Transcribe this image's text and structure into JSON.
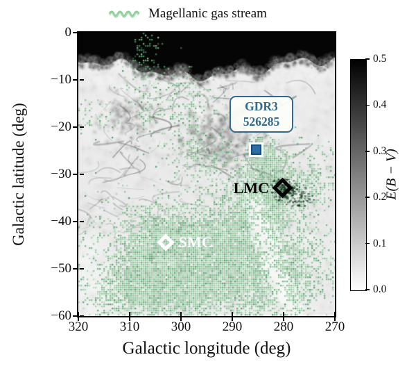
{
  "legend": {
    "label": "Magellanic gas stream",
    "marker_color": "#8ccf97"
  },
  "figure": {
    "annotation": {
      "line1": "GDR3",
      "line2": "526285",
      "color": "#2e6b8f"
    },
    "accent_colors": {
      "stream_green": "#58aa6c",
      "marker_blue_fill": "#2c6fa6",
      "marker_blue_edge": "#1a4a73"
    }
  },
  "chart_data": {
    "type": "heatmap",
    "title": "",
    "xlabel": "Galactic longitude (deg)",
    "ylabel": "Galactic latitude (deg)",
    "xlim": [
      320,
      270
    ],
    "ylim": [
      -60,
      0
    ],
    "x_ticks": [
      320,
      310,
      300,
      290,
      280,
      270
    ],
    "y_ticks": [
      0,
      -10,
      -20,
      -30,
      -40,
      -50,
      -60
    ],
    "grid": false,
    "colorbar": {
      "label": "E(B − V)",
      "range": [
        0.0,
        0.5
      ],
      "ticks": [
        0.0,
        0.1,
        0.2,
        0.3,
        0.4,
        0.5
      ],
      "colormap": "Greys (white=0.0, black=0.5)",
      "orientation": "vertical-right"
    },
    "legend": [
      {
        "label": "Magellanic gas stream",
        "color": "#8ccf97",
        "position": "above top edge"
      }
    ],
    "background_layers": [
      {
        "name": "dust-extinction-map",
        "description": "grayscale E(B-V) dust map: saturated black band along b=0 to -5, mottled gray clouds with dark filaments between b=-5 and -30, light gray below"
      },
      {
        "name": "magellanic-gas-stream",
        "description": "green pixelated overlay, densest from (l=310,b=-55) through SMC (l=303,b=-44) up to LMC (l=280,b=-33); sparse speckles above b=-25"
      }
    ],
    "points": [
      {
        "name": "GDR3 526285",
        "lon": 285.4,
        "lat": -24.8,
        "marker": {
          "shape": "square",
          "size": 15,
          "fill": "#2c6fa6",
          "edge": "#1a4a73",
          "edge_width": 2,
          "halo": "#ffffff"
        },
        "label": null
      },
      {
        "name": "LMC",
        "lon": 280.2,
        "lat": -32.9,
        "marker": {
          "shape": "diamond",
          "size": 21,
          "fill": "none",
          "edge": "#000000",
          "edge_width": 5
        },
        "label": {
          "text": "LMC",
          "color": "#000000",
          "side": "left",
          "font_size": 22
        }
      },
      {
        "name": "SMC",
        "lon": 303.0,
        "lat": -44.4,
        "marker": {
          "shape": "diamond",
          "size": 18,
          "fill": "none",
          "edge": "#ffffff",
          "edge_width": 5
        },
        "label": {
          "text": "SMC",
          "color": "#ffffff",
          "side": "right",
          "font_size": 22
        }
      }
    ],
    "annotation_boxes": [
      {
        "text": "GDR3\n526285",
        "target": "GDR3 526285",
        "text_color": "#2e6b8f",
        "border_color": "#2e6b8f",
        "face_color": "#fbfbf9",
        "position": "above marker"
      }
    ]
  }
}
